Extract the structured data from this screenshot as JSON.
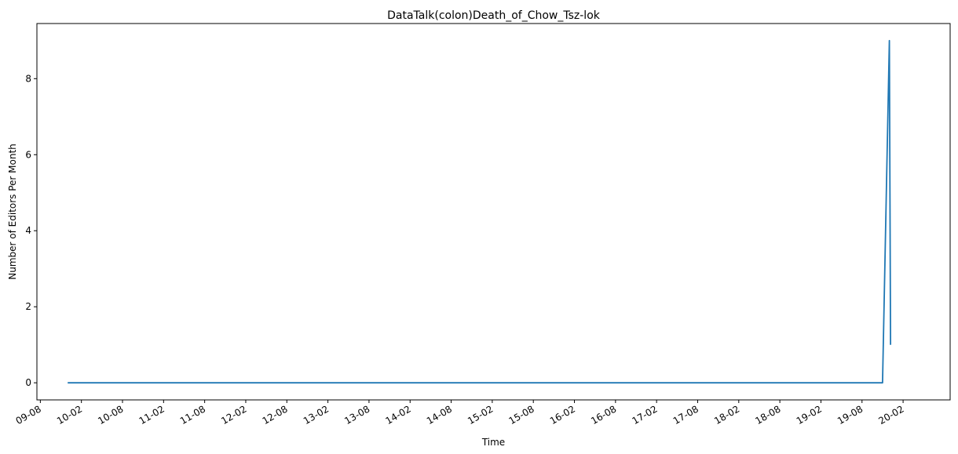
{
  "chart_data": {
    "type": "line",
    "title": "DataTalk(colon)Death_of_Chow_Tsz-lok",
    "xlabel": "Time",
    "ylabel": "Number of Editors Per Month",
    "x_ticks": [
      "09-08",
      "10-02",
      "10-08",
      "11-02",
      "11-08",
      "12-02",
      "12-08",
      "13-02",
      "13-08",
      "14-02",
      "14-08",
      "15-02",
      "15-08",
      "16-02",
      "16-08",
      "17-02",
      "17-08",
      "18-02",
      "18-08",
      "19-02",
      "19-08",
      "20-02"
    ],
    "y_ticks": [
      "0",
      "2",
      "4",
      "6",
      "8"
    ],
    "ylim": [
      -0.45,
      9.45
    ],
    "grid": false,
    "series": [
      {
        "color": "#1f77b4",
        "points": [
          {
            "x": "2009-12",
            "y": 0
          },
          {
            "x": "2019-11",
            "y": 0
          },
          {
            "x": "2019-12",
            "y": 9
          },
          {
            "x": "2019-12",
            "y": 1
          }
        ]
      }
    ]
  }
}
